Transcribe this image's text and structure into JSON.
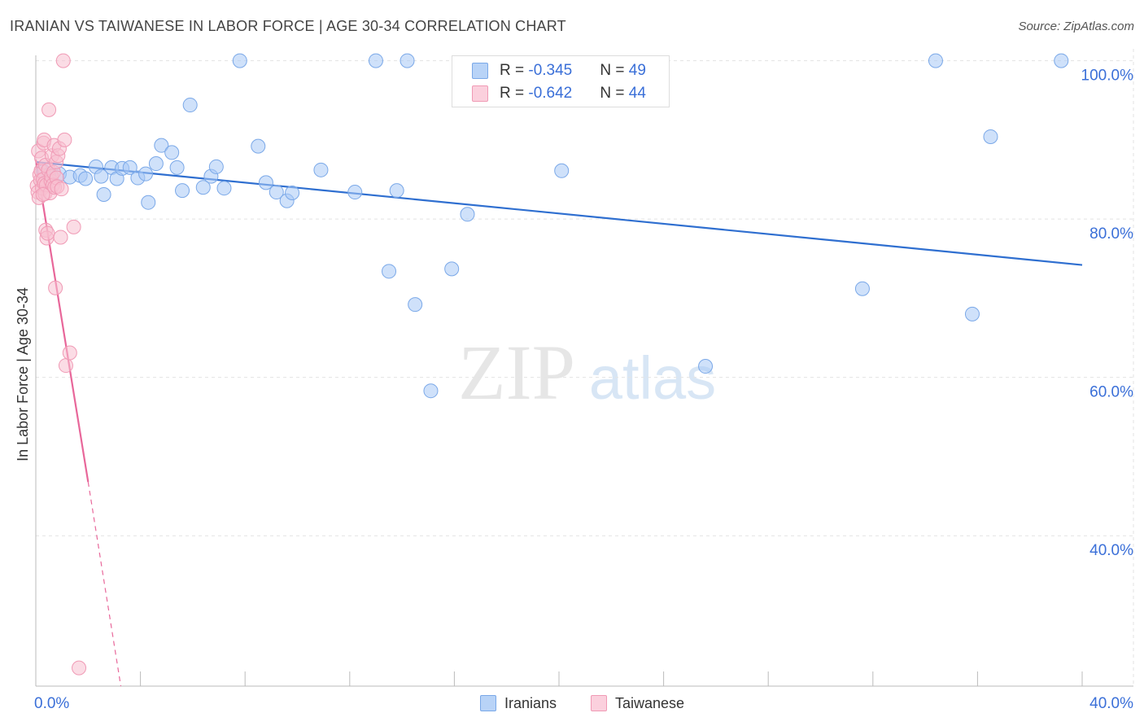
{
  "title": "IRANIAN VS TAIWANESE IN LABOR FORCE | AGE 30-34 CORRELATION CHART",
  "source": "Source: ZipAtlas.com",
  "watermark": {
    "zip": "ZIP",
    "atlas": "atlas"
  },
  "legend": {
    "iranians": {
      "r_label": "R = ",
      "r_value": "-0.345",
      "n_label": "N = ",
      "n_value": "49"
    },
    "taiwanese": {
      "r_label": "R = ",
      "r_value": "-0.642",
      "n_label": "N = ",
      "n_value": "44"
    }
  },
  "bottom_legend": {
    "iranians": "Iranians",
    "taiwanese": "Taiwanese"
  },
  "colors": {
    "iranians_fill": "#a8c8f5",
    "iranians_stroke": "#7aa8e8",
    "iranians_line": "#2f6fd0",
    "taiwanese_fill": "#f8bfd0",
    "taiwanese_stroke": "#f09ab5",
    "taiwanese_line": "#e8679a",
    "axis_label": "#3a6fd8",
    "grid": "#e3e3e3"
  },
  "chart_data": {
    "type": "scatter",
    "xlabel": "",
    "ylabel": "In Labor Force | Age 30-34",
    "xlim": [
      0,
      40
    ],
    "ylim": [
      21,
      101.5
    ],
    "x_tick_labels": [
      {
        "value": 0,
        "label": "0.0%"
      },
      {
        "value": 40,
        "label": "40.0%"
      }
    ],
    "y_tick_labels": [
      {
        "value": 100,
        "label": "100.0%"
      },
      {
        "value": 80,
        "label": "80.0%"
      },
      {
        "value": 60,
        "label": "60.0%"
      },
      {
        "value": 40,
        "label": "40.0%"
      }
    ],
    "series": [
      {
        "name": "Iranians",
        "points": [
          [
            0.3,
            86.0
          ],
          [
            0.5,
            85.6
          ],
          [
            0.9,
            85.7
          ],
          [
            1.3,
            85.3
          ],
          [
            1.7,
            85.5
          ],
          [
            1.9,
            85.1
          ],
          [
            2.3,
            86.6
          ],
          [
            2.5,
            85.4
          ],
          [
            2.6,
            83.1
          ],
          [
            2.9,
            86.5
          ],
          [
            3.1,
            85.1
          ],
          [
            3.3,
            86.4
          ],
          [
            3.6,
            86.5
          ],
          [
            3.9,
            85.2
          ],
          [
            4.2,
            85.7
          ],
          [
            4.3,
            82.1
          ],
          [
            4.6,
            87.0
          ],
          [
            4.8,
            89.3
          ],
          [
            5.2,
            88.4
          ],
          [
            5.4,
            86.5
          ],
          [
            5.6,
            83.6
          ],
          [
            5.9,
            94.4
          ],
          [
            6.4,
            84.0
          ],
          [
            6.7,
            85.4
          ],
          [
            6.9,
            86.6
          ],
          [
            7.2,
            83.9
          ],
          [
            7.8,
            100.0
          ],
          [
            8.5,
            89.2
          ],
          [
            8.8,
            84.6
          ],
          [
            9.2,
            83.4
          ],
          [
            9.6,
            82.3
          ],
          [
            9.8,
            83.3
          ],
          [
            10.9,
            86.2
          ],
          [
            12.2,
            83.4
          ],
          [
            13.0,
            100.0
          ],
          [
            13.5,
            73.4
          ],
          [
            13.8,
            83.6
          ],
          [
            14.2,
            100.0
          ],
          [
            14.5,
            69.2
          ],
          [
            15.1,
            58.3
          ],
          [
            15.9,
            73.7
          ],
          [
            16.5,
            80.6
          ],
          [
            20.1,
            86.1
          ],
          [
            25.6,
            61.4
          ],
          [
            31.6,
            71.2
          ],
          [
            34.4,
            100.0
          ],
          [
            35.8,
            68.0
          ],
          [
            36.5,
            90.4
          ],
          [
            39.2,
            100.0
          ]
        ],
        "trend": {
          "x": [
            0,
            40
          ],
          "y": [
            87.2,
            74.2
          ]
        }
      },
      {
        "name": "Taiwanese",
        "points": [
          [
            0.05,
            84.2
          ],
          [
            0.08,
            83.4
          ],
          [
            0.1,
            88.6
          ],
          [
            0.12,
            82.7
          ],
          [
            0.15,
            85.6
          ],
          [
            0.18,
            84.9
          ],
          [
            0.2,
            86.1
          ],
          [
            0.22,
            87.7
          ],
          [
            0.25,
            83.9
          ],
          [
            0.28,
            85.0
          ],
          [
            0.3,
            89.6
          ],
          [
            0.32,
            90.0
          ],
          [
            0.33,
            84.5
          ],
          [
            0.35,
            83.2
          ],
          [
            0.37,
            86.8
          ],
          [
            0.38,
            78.6
          ],
          [
            0.4,
            84.3
          ],
          [
            0.42,
            77.6
          ],
          [
            0.45,
            78.2
          ],
          [
            0.48,
            86.2
          ],
          [
            0.5,
            93.8
          ],
          [
            0.55,
            83.3
          ],
          [
            0.58,
            84.8
          ],
          [
            0.6,
            85.4
          ],
          [
            0.62,
            88.0
          ],
          [
            0.65,
            84.3
          ],
          [
            0.68,
            85.9
          ],
          [
            0.7,
            89.3
          ],
          [
            0.72,
            84.0
          ],
          [
            0.75,
            71.3
          ],
          [
            0.78,
            87.2
          ],
          [
            0.8,
            85.2
          ],
          [
            0.82,
            84.1
          ],
          [
            0.85,
            88.0
          ],
          [
            0.9,
            88.9
          ],
          [
            0.95,
            77.7
          ],
          [
            0.98,
            83.8
          ],
          [
            1.05,
            100.0
          ],
          [
            1.1,
            90.0
          ],
          [
            1.15,
            61.5
          ],
          [
            1.3,
            63.1
          ],
          [
            1.45,
            79.0
          ],
          [
            1.65,
            23.3
          ],
          [
            0.27,
            83.1
          ]
        ],
        "trend": {
          "x": [
            0,
            2.0
          ],
          "y": [
            87.5,
            46.8
          ]
        },
        "trend_dashed": {
          "x": [
            2.0,
            3.25
          ],
          "y": [
            46.8,
            21.0
          ]
        }
      }
    ]
  }
}
